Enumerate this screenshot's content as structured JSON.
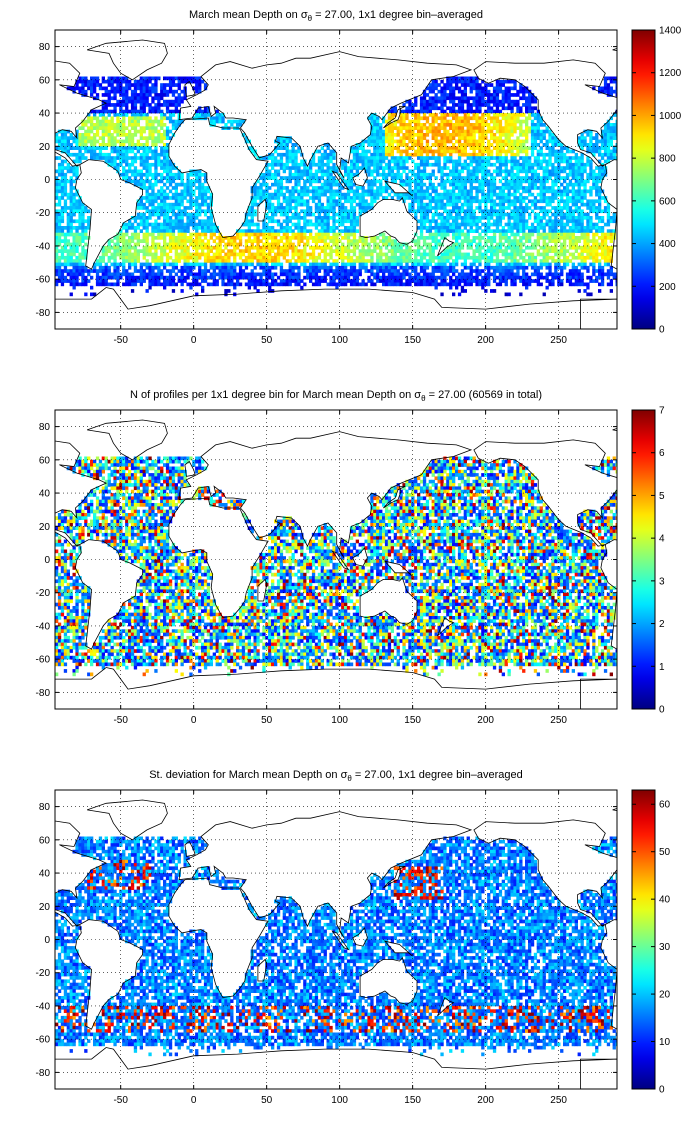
{
  "chart_data": [
    {
      "type": "heatmap",
      "title": "March mean Depth on σθ = 27.00, 1x1 degree bin–averaged",
      "title_parts": [
        "March mean Depth on σ",
        "θ",
        " = 27.00, 1x1 degree bin–averaged"
      ],
      "xlim": [
        -95,
        290
      ],
      "ylim": [
        -90,
        90
      ],
      "xticks": [
        -50,
        0,
        50,
        100,
        150,
        200,
        250
      ],
      "yticks": [
        -80,
        -60,
        -40,
        -20,
        0,
        20,
        40,
        60,
        80
      ],
      "grid": "dotted",
      "colorbar": {
        "range": [
          0,
          1400
        ],
        "ticks": [
          0,
          200,
          400,
          600,
          800,
          1000,
          1200,
          1400
        ],
        "colormap": "jet"
      }
    },
    {
      "type": "heatmap",
      "title": "N of profiles per 1x1 degree bin for March mean Depth on σθ = 27.00 (60569 in total)",
      "title_parts": [
        "N of profiles per 1x1 degree bin for March mean Depth on σ",
        "θ",
        " = 27.00 (60569 in total)"
      ],
      "xlim": [
        -95,
        290
      ],
      "ylim": [
        -90,
        90
      ],
      "xticks": [
        -50,
        0,
        50,
        100,
        150,
        200,
        250
      ],
      "yticks": [
        -80,
        -60,
        -40,
        -20,
        0,
        20,
        40,
        60,
        80
      ],
      "grid": "dotted",
      "colorbar": {
        "range": [
          0,
          7
        ],
        "ticks": [
          0,
          1,
          2,
          3,
          4,
          5,
          6,
          7
        ],
        "colormap": "jet"
      }
    },
    {
      "type": "heatmap",
      "title": "St. deviation for March mean Depth on σθ = 27.00, 1x1 degree bin–averaged",
      "title_parts": [
        "St. deviation for March mean Depth on σ",
        "θ",
        " = 27.00, 1x1 degree bin–averaged"
      ],
      "xlim": [
        -95,
        290
      ],
      "ylim": [
        -90,
        90
      ],
      "xticks": [
        -50,
        0,
        50,
        100,
        150,
        200,
        250
      ],
      "yticks": [
        -80,
        -60,
        -40,
        -20,
        0,
        20,
        40,
        60,
        80
      ],
      "grid": "dotted",
      "colorbar": {
        "range": [
          0,
          63
        ],
        "ticks": [
          0,
          10,
          20,
          30,
          40,
          50,
          60
        ],
        "colormap": "jet"
      }
    }
  ]
}
